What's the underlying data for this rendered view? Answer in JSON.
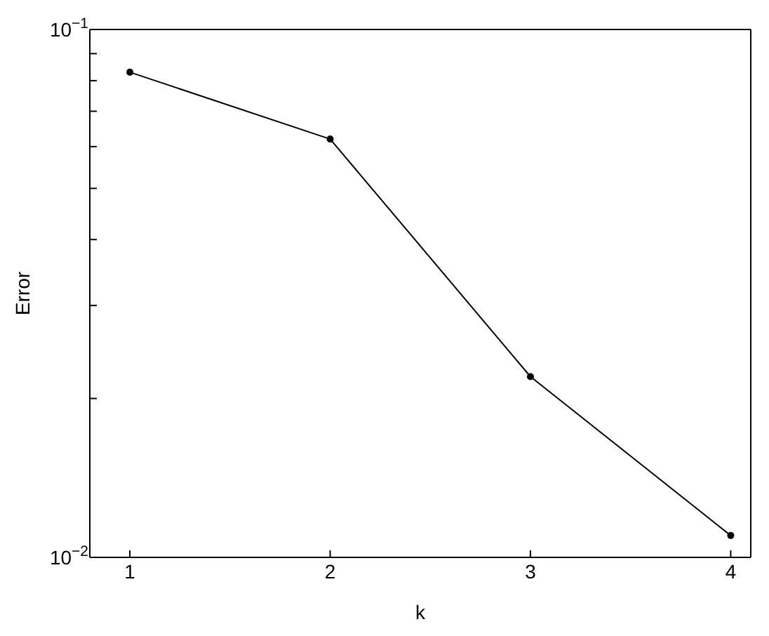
{
  "chart_data": {
    "type": "line",
    "xlabel": "k",
    "ylabel": "Error",
    "x": [
      1,
      2,
      3,
      4
    ],
    "series": [
      {
        "color": "#000000",
        "values": [
          0.083,
          0.062,
          0.022,
          0.011
        ]
      }
    ],
    "log": "y",
    "xlim": [
      0.8,
      4.1
    ],
    "xticks": [
      1,
      2,
      3,
      4
    ],
    "ylim": [
      0.01,
      0.1
    ],
    "yticks": [
      {
        "value": 0.01,
        "label": "10$^{−2}$"
      },
      {
        "value": 0.02,
        "label": null
      },
      {
        "value": 0.03,
        "label": null
      },
      {
        "value": 0.04,
        "label": null
      },
      {
        "value": 0.05,
        "label": null
      },
      {
        "value": 0.06,
        "label": null
      },
      {
        "value": 0.07,
        "label": null
      },
      {
        "value": 0.08,
        "label": null
      },
      {
        "value": 0.09,
        "label": null
      },
      {
        "value": 0.1,
        "label": "10$^{−1}$"
      }
    ],
    "grid": false,
    "legend": false,
    "marker": "circle",
    "line_style": "solid"
  }
}
